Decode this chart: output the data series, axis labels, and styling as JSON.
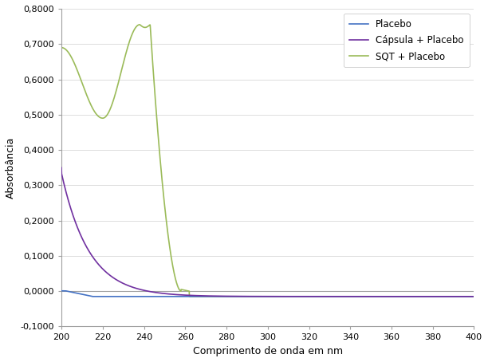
{
  "title": "",
  "xlabel": "Comprimento de onda em nm",
  "ylabel": "Absorbância",
  "xlim": [
    200,
    400
  ],
  "ylim": [
    -0.1,
    0.8
  ],
  "xticks": [
    200,
    220,
    240,
    260,
    280,
    300,
    320,
    340,
    360,
    380,
    400
  ],
  "yticks": [
    -0.1,
    0.0,
    0.1,
    0.2,
    0.3,
    0.4,
    0.5,
    0.6,
    0.7,
    0.8
  ],
  "legend": [
    "Placebo",
    "Cápsula + Placebo",
    "SQT + Placebo"
  ],
  "colors": {
    "placebo": "#4472C4",
    "capsula": "#7030A0",
    "sqt": "#9BBB59"
  },
  "background_color": "#FFFFFF",
  "grid_color": "#D0D0D0"
}
